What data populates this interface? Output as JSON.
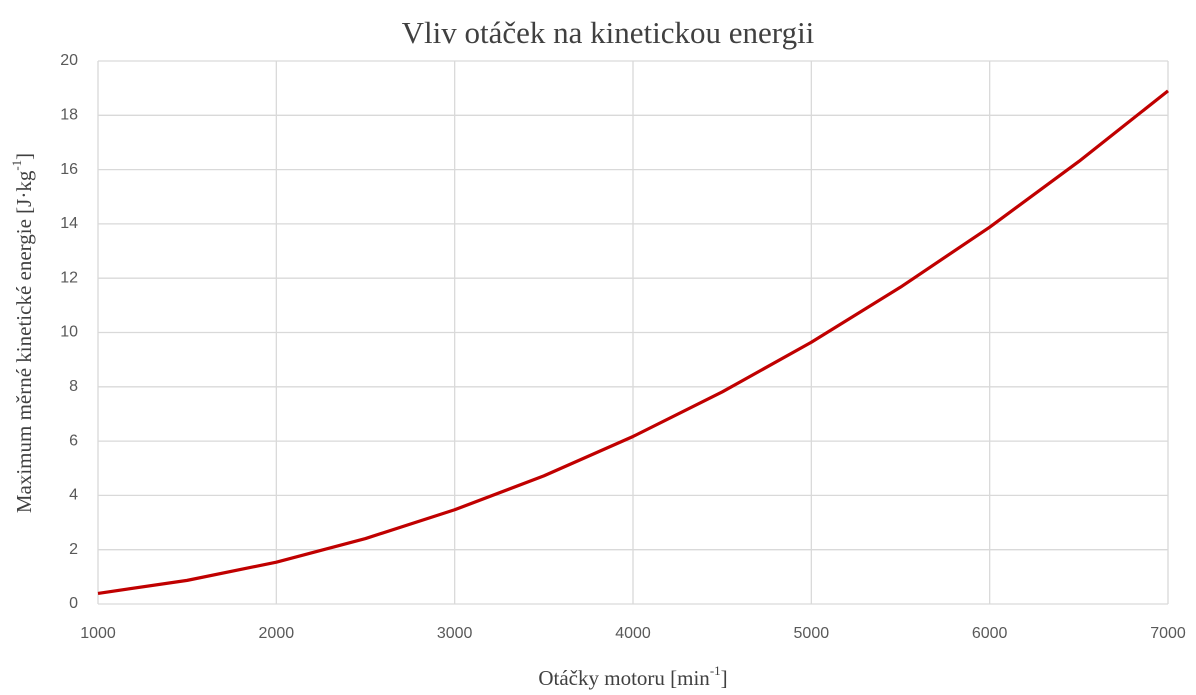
{
  "chart_data": {
    "type": "line",
    "title": "Vliv otáček na kinetickou energii",
    "xlabel": [
      "Otáčky motoru [min",
      "-1",
      "]"
    ],
    "ylabel": [
      "Maximum měrné kinetické energie [J·kg",
      "-1",
      "]"
    ],
    "x": [
      1000,
      1500,
      2000,
      2500,
      3000,
      3500,
      4000,
      4500,
      5000,
      5500,
      6000,
      6500,
      7000
    ],
    "series": [
      {
        "color": "#c00000",
        "values": [
          0.39,
          0.87,
          1.54,
          2.41,
          3.47,
          4.72,
          6.17,
          7.81,
          9.64,
          11.67,
          13.88,
          16.3,
          18.9
        ]
      }
    ],
    "xlim": [
      1000,
      7000
    ],
    "xticks": [
      1000,
      2000,
      3000,
      4000,
      5000,
      6000,
      7000
    ],
    "ylim": [
      0,
      20
    ],
    "yticks": [
      0,
      2,
      4,
      6,
      8,
      10,
      12,
      14,
      16,
      18,
      20
    ],
    "grid": true
  }
}
